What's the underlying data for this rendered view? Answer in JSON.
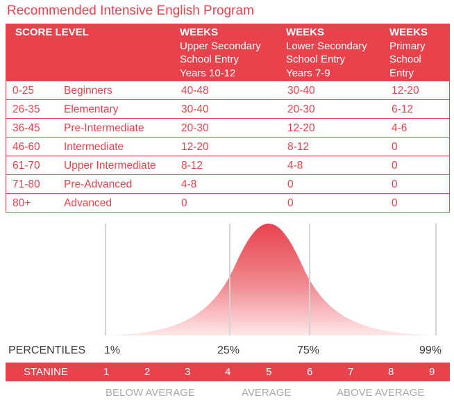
{
  "title": "Recommended Intensive English Program",
  "table": {
    "headers": {
      "score_level": "SCORE LEVEL",
      "col1": {
        "weeks": "WEEKS",
        "line1": "Upper Secondary",
        "line2": "School Entry",
        "line3": "Years 10-12"
      },
      "col2": {
        "weeks": "WEEKS",
        "line1": "Lower Secondary",
        "line2": "School Entry",
        "line3": "Years 7-9"
      },
      "col3": {
        "weeks": "WEEKS",
        "line1": "Primary",
        "line2": "School",
        "line3": "Entry"
      }
    },
    "rows": [
      {
        "score": "0-25",
        "level": "Beginners",
        "upper": "40-48",
        "lower": "30-40",
        "primary": "12-20"
      },
      {
        "score": "26-35",
        "level": "Elementary",
        "upper": "30-40",
        "lower": "20-30",
        "primary": "6-12"
      },
      {
        "score": "36-45",
        "level": "Pre-Intermediate",
        "upper": "20-30",
        "lower": "12-20",
        "primary": "4-6"
      },
      {
        "score": "46-60",
        "level": "Intermediate",
        "upper": "12-20",
        "lower": "8-12",
        "primary": "0"
      },
      {
        "score": "61-70",
        "level": "Upper Intermediate",
        "upper": "8-12",
        "lower": "4-8",
        "primary": "0"
      },
      {
        "score": "71-80",
        "level": "Pre-Advanced",
        "upper": "4-8",
        "lower": "0",
        "primary": "0"
      },
      {
        "score": "80+",
        "level": "Advanced",
        "upper": "0",
        "lower": "0",
        "primary": "0"
      }
    ]
  },
  "distribution": {
    "percentiles_label": "PERCENTILES",
    "percentiles": [
      "1%",
      "25%",
      "75%",
      "99%"
    ],
    "stanine_label": "STANINE",
    "stanines": [
      "1",
      "2",
      "3",
      "4",
      "5",
      "6",
      "7",
      "8",
      "9"
    ],
    "categories": [
      "BELOW AVERAGE",
      "AVERAGE",
      "ABOVE AVERAGE"
    ]
  },
  "colors": {
    "accent": "#e8424d",
    "muted": "#a8a8a8"
  }
}
